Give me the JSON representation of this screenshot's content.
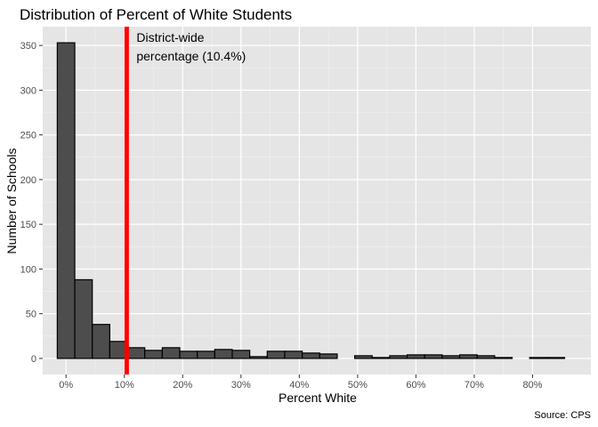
{
  "chart_data": {
    "type": "bar",
    "title": "Distribution of Percent of White Students",
    "xlabel": "Percent White",
    "ylabel": "Number of Schools",
    "caption": "Source: CPS",
    "bin_width": 3,
    "bin_centers": [
      0,
      3,
      6,
      9,
      12,
      15,
      18,
      21,
      24,
      27,
      30,
      33,
      36,
      39,
      42,
      45,
      48,
      51,
      54,
      57,
      60,
      63,
      66,
      69,
      72,
      75,
      78,
      81,
      84
    ],
    "values": [
      353,
      88,
      38,
      19,
      12,
      9,
      12,
      8,
      8,
      10,
      9,
      2,
      8,
      8,
      6,
      5,
      0,
      3,
      1,
      3,
      4,
      4,
      3,
      4,
      3,
      1,
      0,
      1,
      1
    ],
    "xlim": [
      -4,
      90
    ],
    "ylim": [
      -18,
      371
    ],
    "x_ticks": [
      0,
      10,
      20,
      30,
      40,
      50,
      60,
      70,
      80
    ],
    "x_tick_labels": [
      "0%",
      "10%",
      "20%",
      "30%",
      "40%",
      "50%",
      "60%",
      "70%",
      "80%"
    ],
    "y_ticks": [
      0,
      50,
      100,
      150,
      200,
      250,
      300,
      350
    ],
    "y_tick_labels": [
      "0",
      "50",
      "100",
      "150",
      "200",
      "250",
      "300",
      "350"
    ],
    "reference_line": {
      "x": 10.4,
      "color": "#ff0000"
    },
    "annotation_lines": [
      "District-wide",
      "percentage (10.4%)"
    ],
    "grid": true,
    "colors": {
      "panel": "#e5e5e5",
      "grid_major": "#ffffff",
      "bar_fill": "#4d4d4d",
      "bar_stroke": "#000000",
      "tick_text": "#4d4d4d"
    }
  }
}
